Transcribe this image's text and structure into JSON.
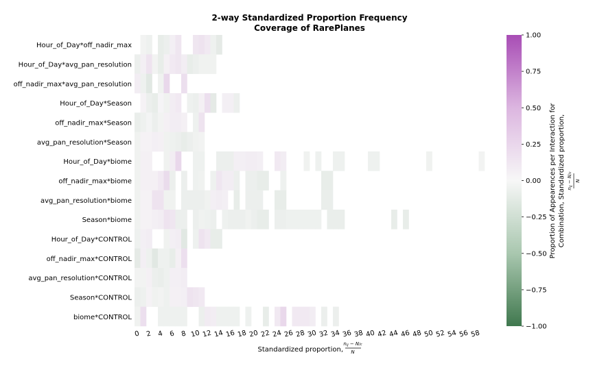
{
  "chart_data": {
    "type": "heatmap",
    "title_line1": "2-way Standardized Proportion Frequency",
    "title_line2": "Coverage of RarePlanes",
    "xlabel": "Standardized proportion,",
    "xlabel_math": "(n_ij - N/c) / N",
    "colorbar_label_line1": "Proportion of Appearences per Interaction for",
    "colorbar_label_line2": "Combination, Standardized proportion,",
    "colorbar_label_math": "(n_ij - N/c) / N",
    "colormap": {
      "min_color": "#40784e",
      "mid_color": "#f7f7f7",
      "max_color": "#a84db5"
    },
    "vmin": -1.0,
    "vmax": 1.0,
    "colorbar_ticks": [
      "1.00",
      "0.75",
      "0.50",
      "0.25",
      "0.00",
      "−0.25",
      "−0.50",
      "−0.75",
      "−1.00"
    ],
    "x_tick_labels": [
      "0",
      "2",
      "4",
      "6",
      "8",
      "10",
      "12",
      "14",
      "16",
      "18",
      "20",
      "22",
      "24",
      "26",
      "28",
      "30",
      "32",
      "34",
      "36",
      "38",
      "40",
      "42",
      "44",
      "46",
      "48",
      "50",
      "52",
      "54",
      "56",
      "58"
    ],
    "rows": [
      "Hour_of_Day*off_nadir_max",
      "Hour_of_Day*avg_pan_resolution",
      "off_nadir_max*avg_pan_resolution",
      "Hour_of_Day*Season",
      "off_nadir_max*Season",
      "avg_pan_resolution*Season",
      "Hour_of_Day*biome",
      "off_nadir_max*biome",
      "avg_pan_resolution*biome",
      "Season*biome",
      "Hour_of_Day*CONTROL",
      "off_nadir_max*CONTROL",
      "avg_pan_resolution*CONTROL",
      "Season*CONTROL",
      "biome*CONTROL"
    ],
    "values": [
      [
        null,
        -0.03,
        -0.05,
        null,
        -0.08,
        -0.06,
        0.05,
        0.1,
        null,
        null,
        0.1,
        0.12,
        0.08,
        -0.05,
        -0.1,
        null,
        null,
        null,
        null,
        null,
        null,
        null,
        null,
        null,
        null,
        null,
        null,
        null,
        null,
        null,
        null,
        null,
        null,
        null,
        null,
        null,
        null,
        null,
        null,
        null,
        null,
        null,
        null,
        null,
        null,
        null,
        null,
        null,
        null,
        null,
        null,
        null,
        null,
        null,
        null,
        null,
        null,
        null,
        null,
        null
      ],
      [
        -0.06,
        0.05,
        0.12,
        -0.03,
        -0.08,
        0.04,
        0.08,
        0.1,
        0.06,
        -0.08,
        -0.06,
        -0.04,
        -0.04,
        -0.04,
        null,
        null,
        null,
        null,
        null,
        null,
        null,
        null,
        null,
        null,
        null,
        null,
        null,
        null,
        null,
        null,
        null,
        null,
        null,
        null,
        null,
        null,
        null,
        null,
        null,
        null,
        null,
        null,
        null,
        null,
        null,
        null,
        null,
        null,
        null,
        null,
        null,
        null,
        null,
        null,
        null,
        null,
        null,
        null,
        null,
        null
      ],
      [
        0.06,
        -0.05,
        -0.12,
        null,
        -0.04,
        0.18,
        null,
        null,
        0.14,
        null,
        null,
        null,
        null,
        null,
        null,
        null,
        null,
        null,
        null,
        null,
        null,
        null,
        null,
        null,
        null,
        null,
        null,
        null,
        null,
        null,
        null,
        null,
        null,
        null,
        null,
        null,
        null,
        null,
        null,
        null,
        null,
        null,
        null,
        null,
        null,
        null,
        null,
        null,
        null,
        null,
        null,
        null,
        null,
        null,
        null,
        null,
        null,
        null,
        null,
        null
      ],
      [
        null,
        0.03,
        -0.06,
        -0.08,
        0.02,
        -0.04,
        0.06,
        0.08,
        null,
        -0.05,
        -0.06,
        0.04,
        0.14,
        -0.1,
        null,
        0.05,
        0.05,
        -0.06,
        null,
        null,
        null,
        null,
        null,
        null,
        null,
        null,
        null,
        null,
        null,
        null,
        null,
        null,
        null,
        null,
        null,
        null,
        null,
        null,
        null,
        null,
        null,
        null,
        null,
        null,
        null,
        null,
        null,
        null,
        null,
        null,
        null,
        null,
        null,
        null,
        null,
        null,
        null,
        null,
        null,
        null
      ],
      [
        -0.07,
        -0.05,
        -0.02,
        -0.06,
        -0.03,
        0.04,
        0.06,
        0.06,
        0.04,
        null,
        -0.05,
        0.12,
        null,
        null,
        null,
        null,
        null,
        null,
        null,
        null,
        null,
        null,
        null,
        null,
        null,
        null,
        null,
        null,
        null,
        null,
        null,
        null,
        null,
        null,
        null,
        null,
        null,
        null,
        null,
        null,
        null,
        null,
        null,
        null,
        null,
        null,
        null,
        null,
        null,
        null,
        null,
        null,
        null,
        null,
        null,
        null,
        null,
        null,
        null,
        null
      ],
      [
        -0.04,
        0.03,
        0.03,
        0.05,
        0.04,
        -0.04,
        -0.05,
        -0.06,
        -0.08,
        -0.06,
        -0.04,
        -0.03,
        null,
        null,
        null,
        null,
        null,
        null,
        null,
        null,
        null,
        null,
        null,
        null,
        null,
        null,
        null,
        null,
        null,
        null,
        null,
        null,
        null,
        null,
        null,
        null,
        null,
        null,
        null,
        null,
        null,
        null,
        null,
        null,
        null,
        null,
        null,
        null,
        null,
        null,
        null,
        null,
        null,
        null,
        null,
        null,
        null,
        null,
        null,
        null
      ],
      [
        -0.04,
        0.04,
        0.04,
        null,
        null,
        -0.04,
        0.06,
        0.18,
        null,
        null,
        -0.05,
        -0.05,
        null,
        null,
        -0.06,
        -0.06,
        -0.06,
        0.05,
        0.05,
        0.06,
        0.06,
        0.05,
        null,
        null,
        0.08,
        0.06,
        null,
        null,
        null,
        -0.04,
        null,
        -0.05,
        null,
        null,
        -0.05,
        -0.05,
        null,
        null,
        null,
        null,
        -0.05,
        -0.05,
        null,
        null,
        null,
        null,
        null,
        null,
        null,
        null,
        -0.04,
        null,
        null,
        null,
        null,
        null,
        null,
        null,
        null,
        -0.03
      ],
      [
        -0.04,
        0.04,
        0.04,
        0.04,
        0.08,
        0.16,
        -0.06,
        null,
        -0.06,
        null,
        -0.05,
        -0.04,
        null,
        -0.05,
        0.1,
        0.06,
        0.06,
        -0.06,
        null,
        -0.06,
        -0.06,
        -0.08,
        -0.08,
        null,
        null,
        -0.05,
        null,
        null,
        null,
        null,
        null,
        null,
        -0.08,
        -0.08,
        null,
        null,
        null,
        null,
        null,
        null,
        null,
        null,
        null,
        null,
        null,
        null,
        null,
        null,
        null,
        null,
        null,
        null,
        null,
        null,
        null,
        null,
        null,
        null,
        null,
        null
      ],
      [
        -0.04,
        0.03,
        0.03,
        0.12,
        0.12,
        -0.04,
        -0.04,
        null,
        -0.06,
        -0.06,
        -0.06,
        -0.06,
        -0.04,
        0.05,
        0.06,
        0.05,
        null,
        -0.08,
        null,
        -0.06,
        -0.06,
        -0.06,
        null,
        null,
        -0.08,
        -0.08,
        null,
        null,
        null,
        null,
        null,
        null,
        -0.07,
        -0.07,
        null,
        null,
        null,
        null,
        null,
        null,
        null,
        null,
        null,
        null,
        null,
        null,
        null,
        null,
        null,
        null,
        null,
        null,
        null,
        null,
        null,
        null,
        null,
        null,
        null,
        null
      ],
      [
        -0.04,
        0.03,
        0.03,
        0.05,
        0.06,
        0.12,
        0.1,
        -0.06,
        -0.06,
        null,
        -0.06,
        -0.04,
        -0.05,
        -0.06,
        null,
        -0.05,
        -0.06,
        -0.06,
        -0.06,
        -0.04,
        -0.06,
        -0.08,
        -0.08,
        null,
        -0.06,
        -0.06,
        -0.05,
        -0.05,
        -0.05,
        -0.05,
        -0.05,
        -0.05,
        null,
        -0.07,
        -0.07,
        -0.07,
        null,
        null,
        null,
        null,
        null,
        null,
        null,
        null,
        -0.08,
        null,
        -0.08,
        null,
        null,
        null,
        null,
        null,
        null,
        null,
        null,
        null,
        null,
        null,
        null,
        null
      ],
      [
        -0.05,
        0.05,
        0.06,
        null,
        null,
        -0.04,
        0.05,
        0.06,
        -0.12,
        null,
        -0.05,
        0.12,
        0.08,
        -0.08,
        -0.08,
        null,
        null,
        null,
        null,
        null,
        null,
        null,
        null,
        null,
        null,
        null,
        null,
        null,
        null,
        null,
        null,
        null,
        null,
        null,
        null,
        null,
        null,
        null,
        null,
        null,
        null,
        null,
        null,
        null,
        null,
        null,
        null,
        null,
        null,
        null,
        null,
        null,
        null,
        null,
        null,
        null,
        null,
        null,
        null,
        null
      ],
      [
        -0.1,
        0.05,
        -0.05,
        -0.12,
        -0.05,
        -0.05,
        -0.08,
        0.04,
        0.14,
        null,
        null,
        null,
        null,
        null,
        null,
        null,
        null,
        null,
        null,
        null,
        null,
        null,
        null,
        null,
        null,
        null,
        null,
        null,
        null,
        null,
        null,
        null,
        null,
        null,
        null,
        null,
        null,
        null,
        null,
        null,
        null,
        null,
        null,
        null,
        null,
        null,
        null,
        null,
        null,
        null,
        null,
        null,
        null,
        null,
        null,
        null,
        null,
        null,
        null,
        null
      ],
      [
        -0.03,
        -0.03,
        0.04,
        -0.06,
        -0.07,
        -0.05,
        0.05,
        0.05,
        0.06,
        null,
        null,
        null,
        null,
        null,
        null,
        null,
        null,
        null,
        null,
        null,
        null,
        null,
        null,
        null,
        null,
        null,
        null,
        null,
        null,
        null,
        null,
        null,
        null,
        null,
        null,
        null,
        null,
        null,
        null,
        null,
        null,
        null,
        null,
        null,
        null,
        null,
        null,
        null,
        null,
        null,
        null,
        null,
        null,
        null,
        null,
        null,
        null,
        null,
        null,
        null
      ],
      [
        -0.06,
        -0.05,
        0.03,
        -0.04,
        -0.03,
        -0.05,
        0.04,
        0.04,
        0.05,
        0.12,
        0.1,
        0.08,
        null,
        null,
        null,
        null,
        null,
        null,
        null,
        null,
        null,
        null,
        null,
        null,
        null,
        null,
        null,
        null,
        null,
        null,
        null,
        null,
        null,
        null,
        null,
        null,
        null,
        null,
        null,
        null,
        null,
        null,
        null,
        null,
        null,
        null,
        null,
        null,
        null,
        null,
        null,
        null,
        null,
        null,
        null,
        null,
        null,
        null,
        null,
        null
      ],
      [
        -0.04,
        0.14,
        null,
        null,
        -0.05,
        -0.05,
        -0.05,
        -0.05,
        -0.05,
        null,
        null,
        -0.06,
        0.07,
        0.06,
        -0.05,
        -0.05,
        -0.05,
        -0.05,
        null,
        -0.05,
        null,
        null,
        -0.08,
        null,
        0.08,
        0.18,
        null,
        0.08,
        0.08,
        0.08,
        0.06,
        null,
        -0.06,
        null,
        -0.06,
        null,
        null,
        null,
        null,
        null,
        null,
        null,
        null,
        null,
        null,
        null,
        null,
        null,
        null,
        null,
        null,
        null,
        null,
        null,
        null,
        null,
        null,
        null,
        null,
        null
      ]
    ]
  }
}
